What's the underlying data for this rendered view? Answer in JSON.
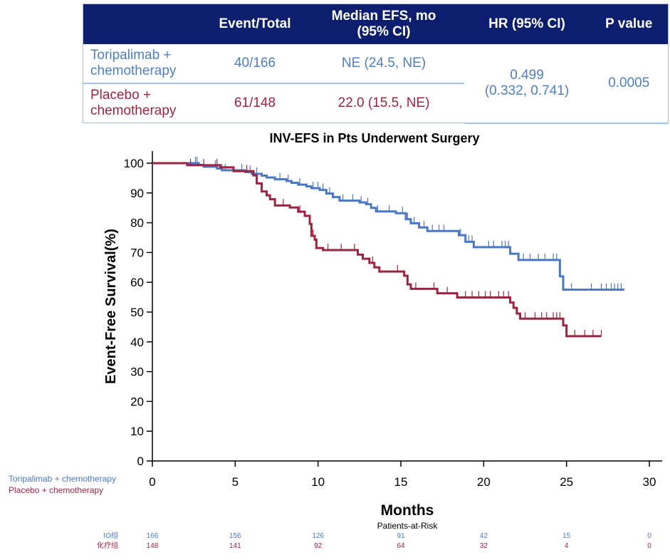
{
  "table": {
    "headers": [
      "",
      "Event/Total",
      "Median EFS, mo\n(95% CI)",
      "HR (95% CI)",
      "P value"
    ],
    "rows": [
      {
        "arm": "Toripalimab +\nchemotherapy",
        "events": "40/166",
        "median": "NE (24.5, NE)"
      },
      {
        "arm": "Placebo +\nchemotherapy",
        "events": "61/148",
        "median": "22.0 (15.5, NE)"
      }
    ],
    "hr": "0.499\n(0.332, 0.741)",
    "p_value": "0.0005"
  },
  "colors": {
    "blue": "#4a78c4",
    "red": "#9b2540",
    "header_bg": "#0d1e6e"
  },
  "chart_data": {
    "type": "line",
    "title": "INV-EFS in Pts Underwent Surgery",
    "xlabel": "Months",
    "ylabel": "Event-Free Survival(%)",
    "xlim": [
      0,
      30
    ],
    "ylim": [
      0,
      100
    ],
    "xticks": [
      0,
      5,
      10,
      15,
      20,
      25,
      30
    ],
    "yticks": [
      0,
      10,
      20,
      30,
      40,
      50,
      60,
      70,
      80,
      90,
      100
    ],
    "legend": [
      "Toripalimab + chemotherapy",
      "Placebo + chemotherapy"
    ],
    "legend_position": "left of x-axis",
    "series": [
      {
        "name": "Toripalimab + chemotherapy",
        "color": "#4a78c4",
        "step_points": [
          [
            0,
            100
          ],
          [
            2.6,
            100
          ],
          [
            2.8,
            99.4
          ],
          [
            3.1,
            98.8
          ],
          [
            3.9,
            98.2
          ],
          [
            4.2,
            97.6
          ],
          [
            5.3,
            97.6
          ],
          [
            5.6,
            97
          ],
          [
            6,
            96.4
          ],
          [
            6.6,
            95.8
          ],
          [
            6.9,
            95.2
          ],
          [
            7.4,
            94.6
          ],
          [
            8.1,
            94
          ],
          [
            8.4,
            93.4
          ],
          [
            8.8,
            92.8
          ],
          [
            9.3,
            92.2
          ],
          [
            9.6,
            91.6
          ],
          [
            10.1,
            91
          ],
          [
            10.5,
            89.8
          ],
          [
            10.9,
            88.6
          ],
          [
            11.3,
            87.4
          ],
          [
            12.5,
            86.8
          ],
          [
            12.9,
            86.2
          ],
          [
            13.2,
            85
          ],
          [
            13.5,
            83.8
          ],
          [
            13.9,
            83.8
          ],
          [
            14.7,
            83.2
          ],
          [
            15.3,
            81.2
          ],
          [
            15.6,
            79.8
          ],
          [
            16.1,
            78.4
          ],
          [
            16.6,
            77.2
          ],
          [
            18.5,
            75.8
          ],
          [
            18.9,
            73.6
          ],
          [
            19.4,
            71.8
          ],
          [
            20.1,
            71.8
          ],
          [
            21.6,
            69.6
          ],
          [
            22.1,
            67.5
          ],
          [
            24.5,
            67.5
          ],
          [
            24.6,
            62
          ],
          [
            24.8,
            57.5
          ],
          [
            28.5,
            57.5
          ]
        ],
        "censor_x": [
          2.6,
          2.7,
          3.8,
          4.2,
          4.4,
          5.4,
          5.9,
          6.3,
          7.7,
          8.2,
          8.9,
          9.7,
          10,
          10.3,
          10.7,
          11.5,
          12.1,
          12.6,
          13,
          13.6,
          14.3,
          15.1,
          15.4,
          15.8,
          16.4,
          16.9,
          17.3,
          17.6,
          18.6,
          18.9,
          19.1,
          19.3,
          20.3,
          20.6,
          21.1,
          21.3,
          21.5,
          22.4,
          22.8,
          23.3,
          23.7,
          24.2,
          24.4,
          25.3,
          26.5,
          27.1,
          27.4,
          27.7,
          27.9,
          28.1,
          28.3
        ],
        "at_risk": [
          166,
          156,
          126,
          91,
          42,
          15,
          0
        ]
      },
      {
        "name": "Placebo + chemotherapy",
        "color": "#9b2540",
        "step_points": [
          [
            0,
            100
          ],
          [
            2.1,
            99.3
          ],
          [
            4.1,
            98.6
          ],
          [
            4.9,
            97.3
          ],
          [
            5.6,
            97.3
          ],
          [
            6.1,
            95.9
          ],
          [
            6.3,
            93.2
          ],
          [
            6.6,
            90.5
          ],
          [
            6.9,
            89.2
          ],
          [
            7.1,
            87.9
          ],
          [
            7.4,
            85.8
          ],
          [
            8.3,
            85.1
          ],
          [
            8.8,
            83.7
          ],
          [
            9.2,
            82.3
          ],
          [
            9.5,
            79.6
          ],
          [
            9.6,
            75.6
          ],
          [
            9.8,
            74.3
          ],
          [
            9.9,
            71.5
          ],
          [
            10.3,
            70.8
          ],
          [
            12,
            70.8
          ],
          [
            12.4,
            69.3
          ],
          [
            12.7,
            67.9
          ],
          [
            13.1,
            66.5
          ],
          [
            13.4,
            65
          ],
          [
            13.7,
            63.6
          ],
          [
            14.9,
            63.6
          ],
          [
            15.2,
            62.2
          ],
          [
            15.4,
            59.3
          ],
          [
            15.6,
            57.8
          ],
          [
            16.6,
            57.8
          ],
          [
            17.2,
            56.3
          ],
          [
            17.9,
            56.3
          ],
          [
            18.4,
            54.9
          ],
          [
            21.3,
            54.9
          ],
          [
            21.6,
            53.2
          ],
          [
            21.8,
            51.4
          ],
          [
            22,
            49.5
          ],
          [
            22.2,
            47.8
          ],
          [
            24.6,
            47.8
          ],
          [
            24.8,
            45.5
          ],
          [
            25,
            41.9
          ],
          [
            27.1,
            41.9
          ]
        ],
        "censor_x": [
          2.3,
          3.1,
          3.9,
          5.7,
          7.9,
          8.9,
          9.7,
          10.6,
          11.4,
          12.2,
          13.3,
          14.8,
          15.9,
          17,
          17.8,
          18.9,
          19.3,
          19.7,
          20.1,
          20.4,
          20.9,
          21.2,
          21.5,
          22.5,
          23.1,
          23.5,
          23.8,
          24.2,
          24.4,
          24.6,
          25.5,
          26.1,
          26.6,
          27.1
        ],
        "at_risk": [
          148,
          141,
          92,
          64,
          32,
          4,
          0
        ]
      }
    ]
  },
  "at_risk_table": {
    "title": "Patients-at-Risk",
    "rows": [
      {
        "label": "IO组",
        "color": "#4a78c4",
        "values": [
          166,
          156,
          126,
          91,
          42,
          15,
          0
        ]
      },
      {
        "label": "化疗组",
        "color": "#9b2540",
        "values": [
          148,
          141,
          92,
          64,
          32,
          4,
          0
        ]
      }
    ]
  }
}
